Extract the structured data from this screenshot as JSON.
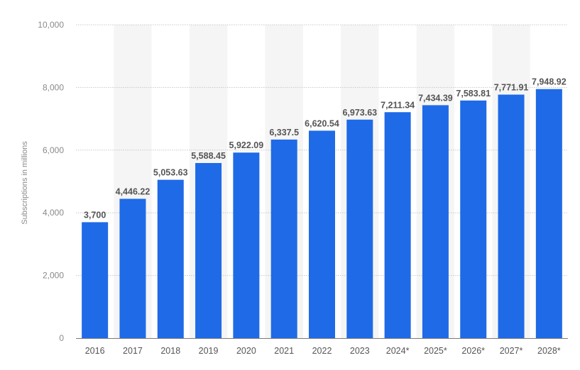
{
  "chart_data": {
    "type": "bar",
    "categories": [
      "2016",
      "2017",
      "2018",
      "2019",
      "2020",
      "2021",
      "2022",
      "2023",
      "2024*",
      "2025*",
      "2026*",
      "2027*",
      "2028*"
    ],
    "values": [
      3700,
      4446.22,
      5053.63,
      5588.45,
      5922.09,
      6337.5,
      6620.54,
      6973.63,
      7211.34,
      7434.39,
      7583.81,
      7771.91,
      7948.92
    ],
    "data_labels": [
      "3,700",
      "4,446.22",
      "5,053.63",
      "5,588.45",
      "5,922.09",
      "6,337.5",
      "6,620.54",
      "6,973.63",
      "7,211.34",
      "7,434.39",
      "7,583.81",
      "7,771.91",
      "7,948.92"
    ],
    "title": "",
    "xlabel": "",
    "ylabel": "Subscriptions in millions",
    "ylim": [
      0,
      10000
    ],
    "yticks": [
      0,
      2000,
      4000,
      6000,
      8000,
      10000
    ],
    "ytick_labels": [
      "0",
      "2,000",
      "4,000",
      "6,000",
      "8,000",
      "10,000"
    ],
    "grid": true,
    "legend": "none",
    "colors": {
      "bar": "#1f6ae6",
      "grid": "#c8c8c8",
      "band": "#f5f5f5",
      "axis": "#7a7a7a"
    }
  }
}
